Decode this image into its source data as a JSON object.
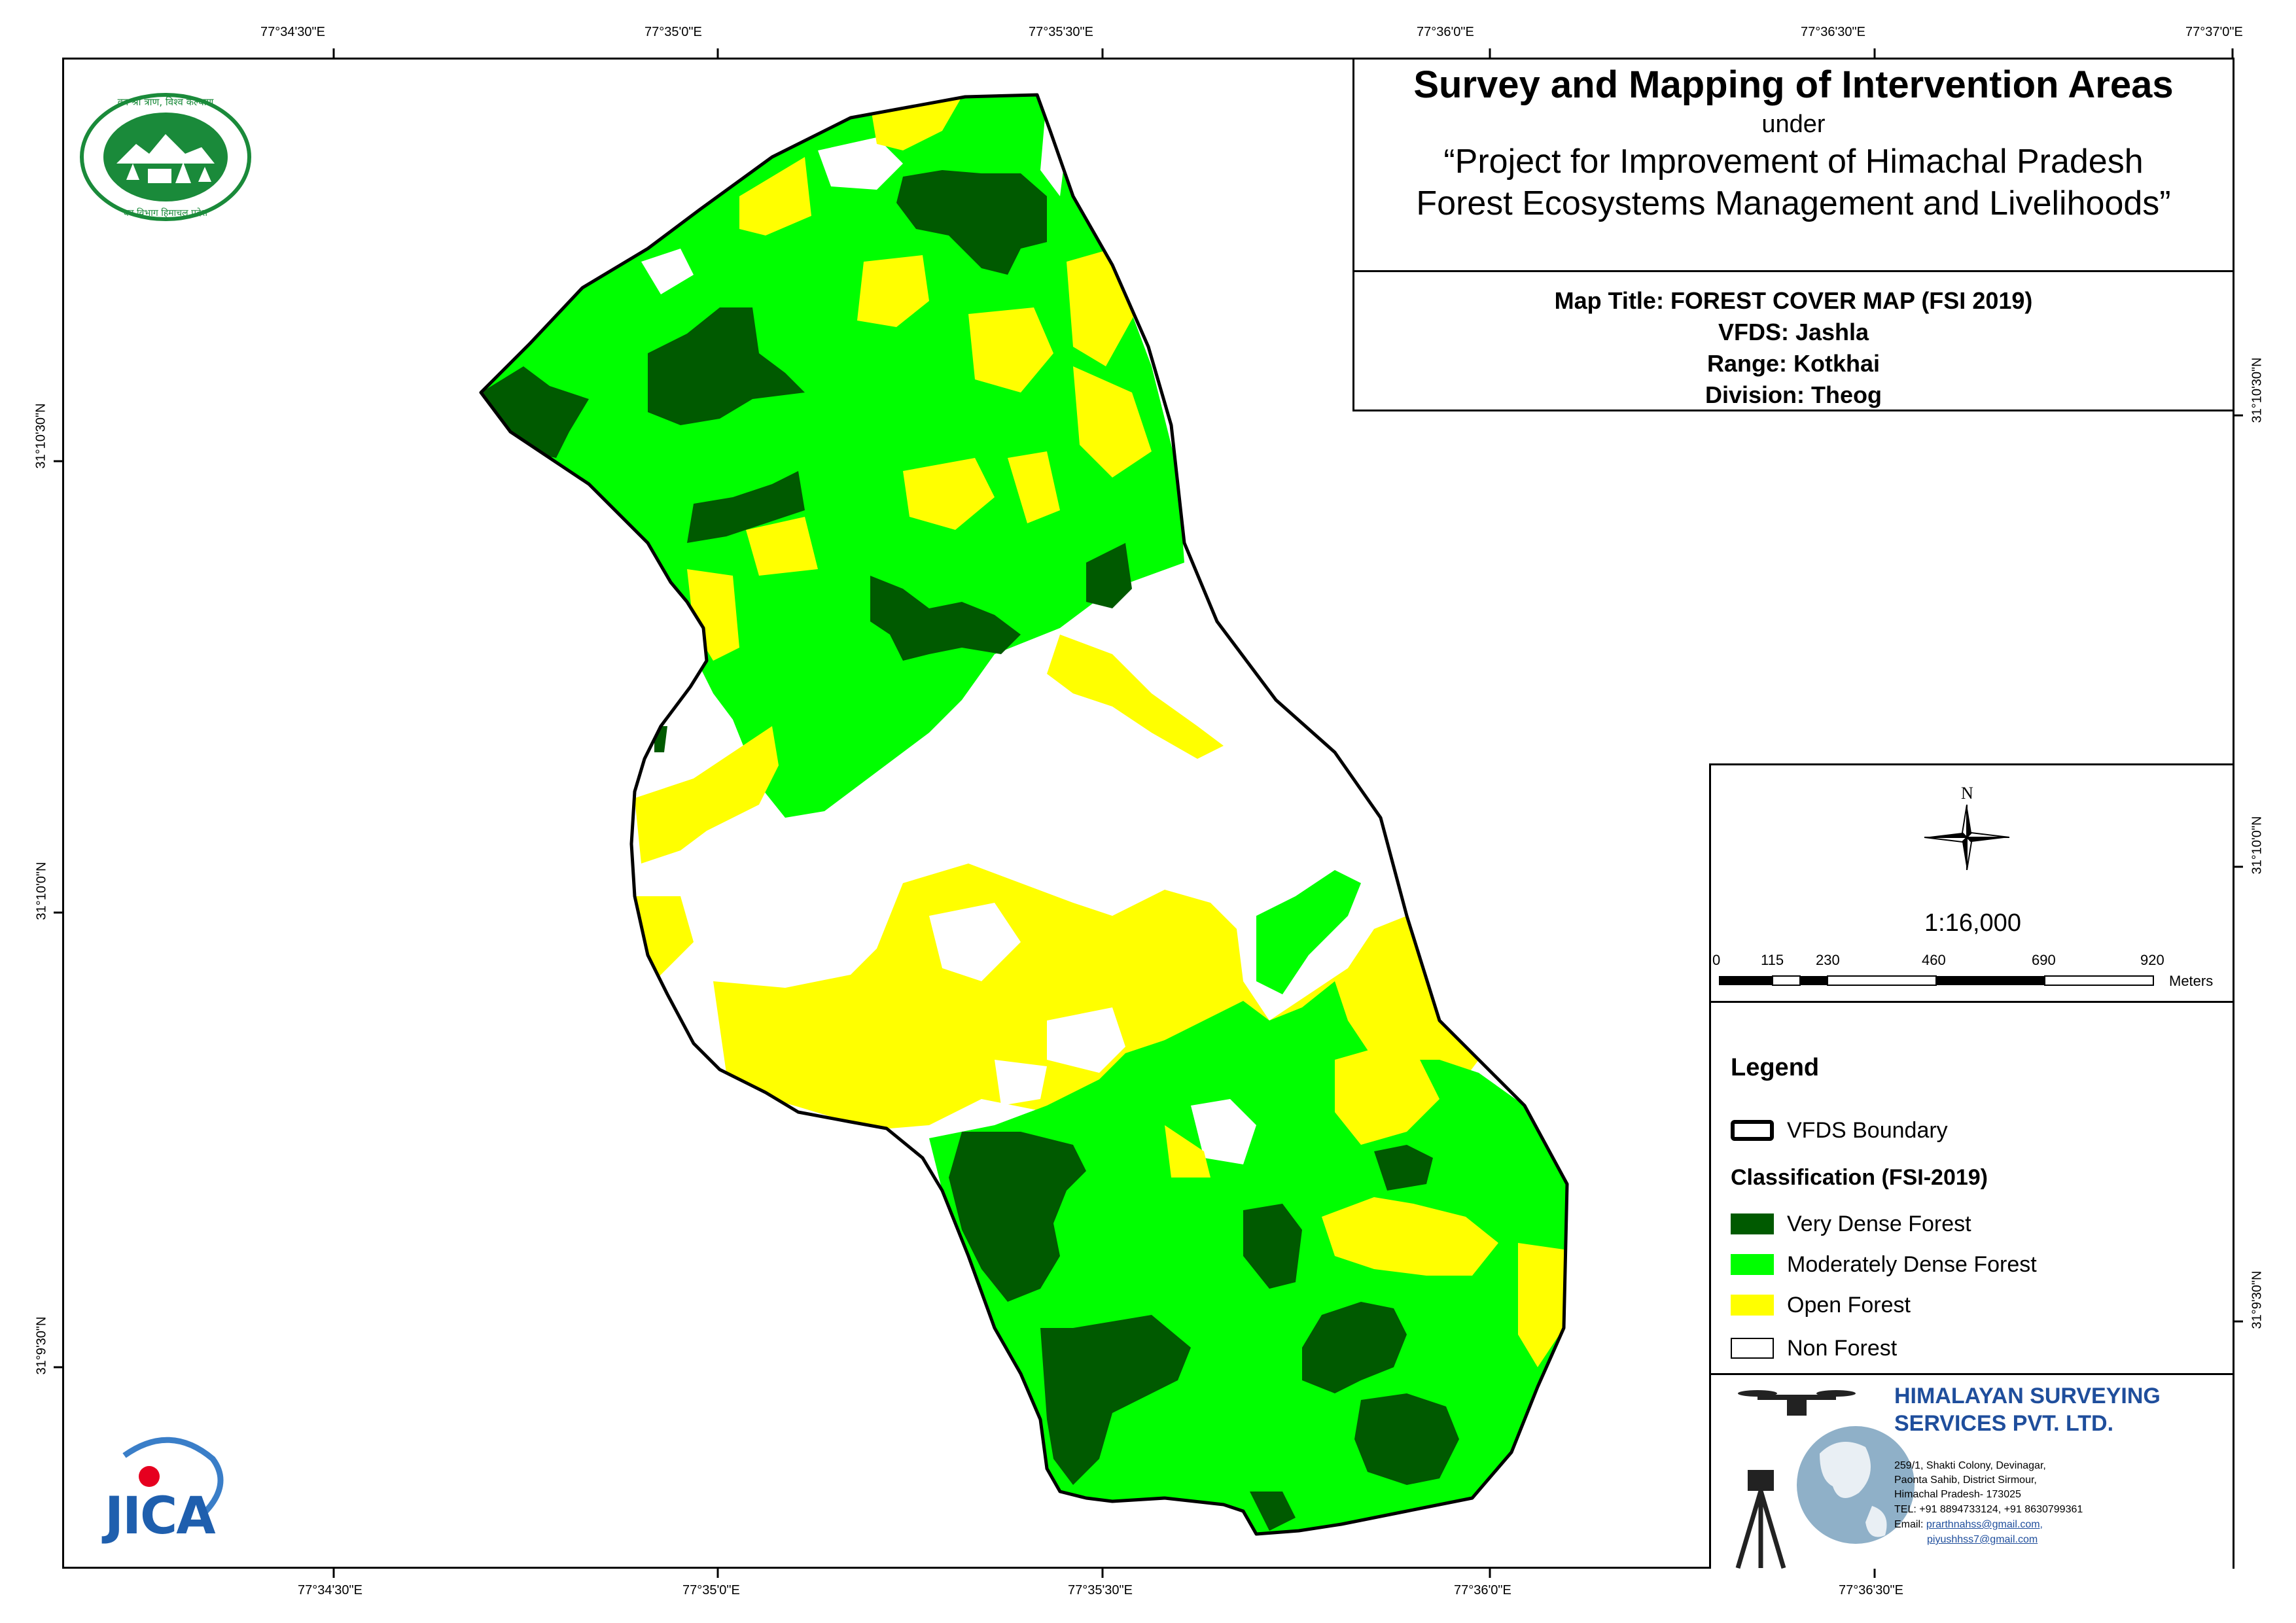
{
  "header": {
    "title": "Survey and Mapping of Intervention Areas",
    "under": "under",
    "project_line1": "“Project for Improvement of Himachal Pradesh",
    "project_line2": "Forest Ecosystems Management and Livelihoods”"
  },
  "map_info": {
    "map_title": "Map Title: FOREST COVER MAP (FSI 2019)",
    "vfds": "VFDS: Jashla",
    "range": "Range: Kotkhai",
    "division": "Division: Theog"
  },
  "graticule": {
    "longitudes": [
      "77°34'30\"E",
      "77°35'0\"E",
      "77°35'30\"E",
      "77°36'0\"E",
      "77°36'30\"E",
      "77°37'0\"E"
    ],
    "bottom_longitudes": [
      "77°34'30\"E",
      "77°35'0\"E",
      "77°35'30\"E",
      "77°36'0\"E",
      "77°36'30\"E"
    ],
    "latitudes_left": [
      "31°10'30\"N",
      "31°10'0\"N",
      "31°9'30\"N"
    ],
    "latitudes_right": [
      "31°10'30\"N",
      "31°10'0\"N",
      "31°9'30\"N"
    ]
  },
  "north_arrow": {
    "label": "N"
  },
  "scale": {
    "ratio": "1:16,000",
    "ticks": [
      "0",
      "115",
      "230",
      "460",
      "690",
      "920"
    ],
    "unit": "Meters"
  },
  "legend": {
    "title": "Legend",
    "boundary_label": "VFDS Boundary",
    "classification_title": "Classification (FSI-2019)",
    "classes": [
      {
        "label": "Very Dense Forest",
        "color": "#005a00"
      },
      {
        "label": "Moderately Dense Forest",
        "color": "#00ff00"
      },
      {
        "label": "Open Forest",
        "color": "#ffff00"
      },
      {
        "label": "Non Forest",
        "color": "#ffffff"
      }
    ]
  },
  "company": {
    "name_line1": "HIMALAYAN SURVEYING",
    "name_line2": "SERVICES PVT. LTD.",
    "address1": "259/1, Shakti Colony, Devinagar,",
    "address2": "Paonta Sahib, District Sirmour,",
    "address3": "Himachal Pradesh- 173025",
    "tel": "TEL: +91 8894733124, +91 8630799361",
    "email_prefix": "Email:",
    "email1": "prarthnahss@gmail.com,",
    "email2": "piyushhss7@gmail.com"
  },
  "logos": {
    "hp_forest_text_top": "वन श्री त्राण, विश्व कल्याण",
    "hp_forest_text_bottom": "वन विभाग हिमाचल प्रदेश",
    "jica": "JICA"
  },
  "colors": {
    "very_dense": "#005a00",
    "moderately_dense": "#00ff00",
    "open": "#ffff00",
    "non_forest": "#ffffff",
    "company_blue": "#1f4e9c",
    "logo_green": "#1a8a3a"
  }
}
